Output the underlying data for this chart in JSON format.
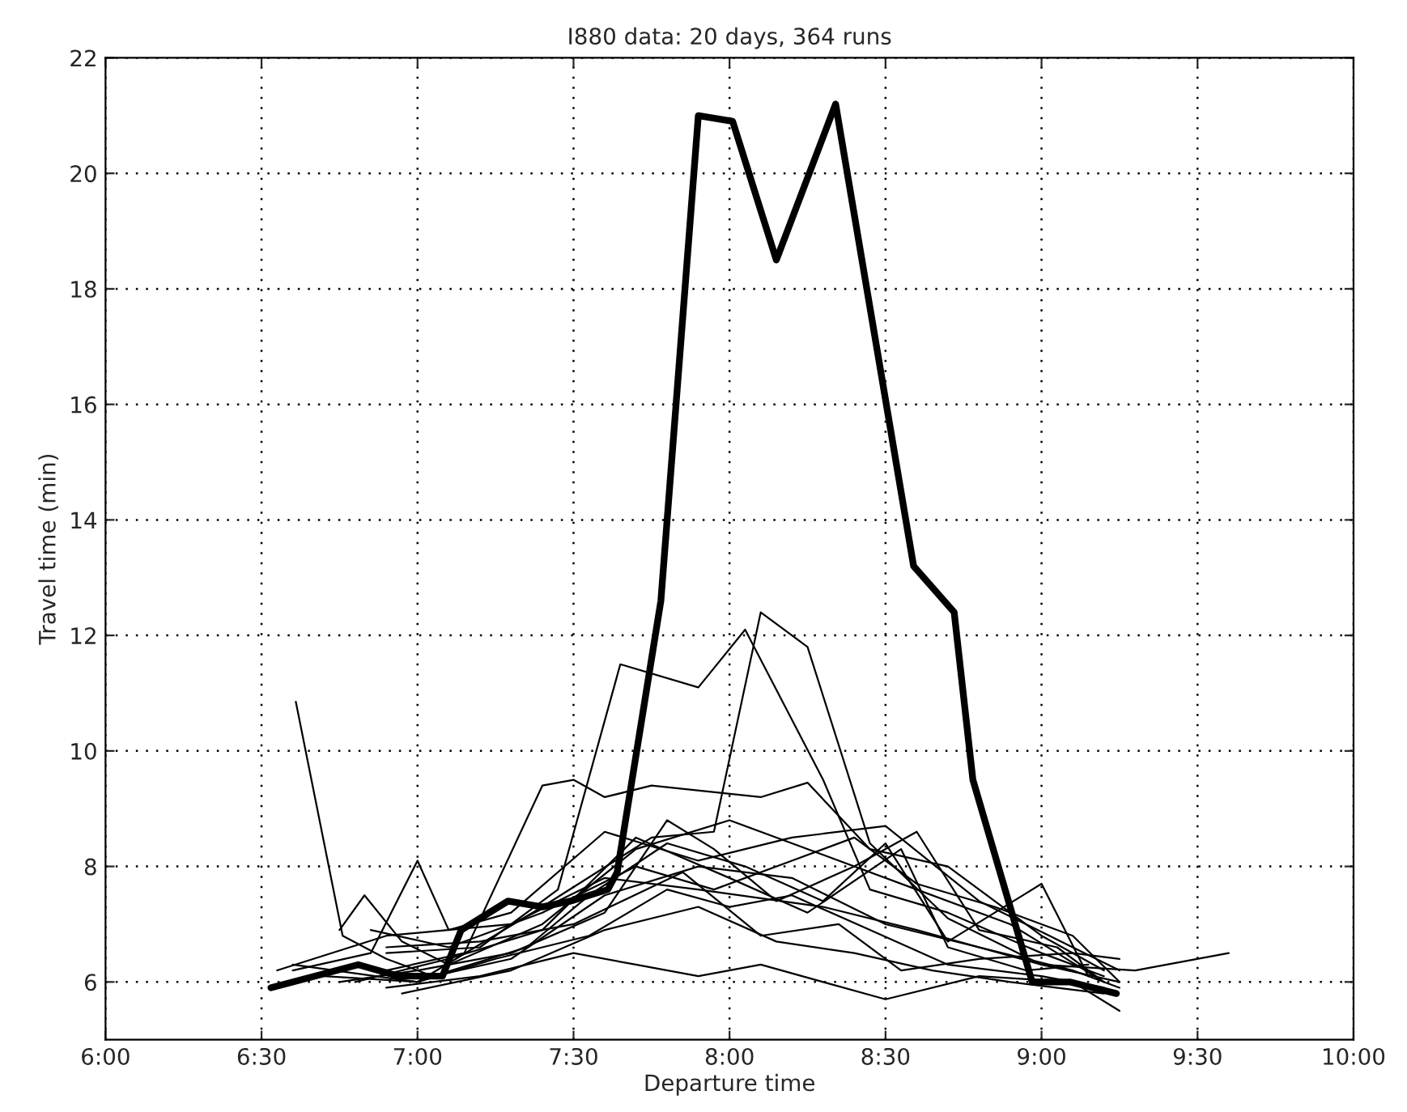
{
  "chart_data": {
    "type": "line",
    "title": "I880 data: 20 days, 364 runs",
    "xlabel": "Departure time",
    "ylabel": "Travel time (min)",
    "xlim": [
      6,
      10
    ],
    "ylim": [
      5,
      22
    ],
    "xticks": [
      {
        "value": 6,
        "label": "6:00"
      },
      {
        "value": 6.5,
        "label": "6:30"
      },
      {
        "value": 7,
        "label": "7:00"
      },
      {
        "value": 7.5,
        "label": "7:30"
      },
      {
        "value": 8,
        "label": "8:00"
      },
      {
        "value": 8.5,
        "label": "8:30"
      },
      {
        "value": 9,
        "label": "9:00"
      },
      {
        "value": 9.5,
        "label": "9:30"
      },
      {
        "value": 10,
        "label": "10:00"
      }
    ],
    "yticks": [
      6,
      8,
      10,
      12,
      14,
      16,
      18,
      20,
      22
    ],
    "grid": true,
    "line_style": "solid",
    "marker": "none",
    "series": [
      {
        "color": "#000000",
        "x": [
          6.53,
          6.81,
          6.94,
          7.08,
          7.14,
          7.29,
          7.4,
          7.49,
          7.61,
          7.64,
          7.78,
          7.9,
          8.01,
          8.15,
          8.34,
          8.59,
          8.72,
          8.78,
          8.97,
          9.09,
          9.24
        ],
        "values": [
          5.9,
          6.3,
          6.1,
          6.1,
          6.9,
          7.4,
          7.3,
          7.4,
          7.6,
          7.9,
          12.6,
          21.0,
          20.9,
          18.5,
          21.2,
          13.2,
          12.4,
          9.5,
          6.0,
          6.0,
          5.8
        ]
      },
      {
        "color": "#000000",
        "x": [
          6.61,
          6.76,
          6.9,
          7.05,
          7.3,
          7.6,
          7.9,
          8.2,
          8.5,
          8.8,
          9.1,
          9.25
        ],
        "values": [
          10.85,
          6.8,
          6.4,
          6.1,
          6.4,
          7.5,
          8.0,
          7.8,
          7.0,
          6.6,
          6.2,
          5.9
        ]
      },
      {
        "color": "#000000",
        "x": [
          6.6,
          7.0,
          7.4,
          7.75,
          7.95,
          8.1,
          8.25,
          8.45,
          8.7,
          9.0,
          9.25
        ],
        "values": [
          6.3,
          6.0,
          7.3,
          8.5,
          8.6,
          12.4,
          11.8,
          8.4,
          7.1,
          6.3,
          6.0
        ]
      },
      {
        "color": "#000000",
        "x": [
          6.9,
          7.2,
          7.45,
          7.65,
          7.9,
          8.05,
          8.3,
          8.45,
          8.7,
          9.0,
          9.2
        ],
        "values": [
          6.5,
          6.6,
          7.6,
          11.5,
          11.1,
          12.1,
          9.5,
          7.6,
          7.2,
          6.5,
          6.1
        ]
      },
      {
        "color": "#000000",
        "x": [
          6.9,
          7.15,
          7.4,
          7.5,
          7.6,
          7.75,
          8.1,
          8.25,
          8.45,
          8.7,
          9.0,
          9.2
        ],
        "values": [
          6.2,
          6.5,
          9.4,
          9.5,
          9.2,
          9.4,
          9.2,
          9.45,
          8.3,
          8.0,
          6.8,
          6.2
        ]
      },
      {
        "color": "#000000",
        "x": [
          6.6,
          6.85,
          7.0,
          7.1,
          7.3,
          7.6,
          7.9,
          8.2,
          8.5,
          8.8,
          9.1,
          9.25
        ],
        "values": [
          6.2,
          6.5,
          8.1,
          6.9,
          7.2,
          8.6,
          8.1,
          8.5,
          8.7,
          7.4,
          6.6,
          6.2
        ]
      },
      {
        "color": "#000000",
        "x": [
          6.75,
          6.83,
          6.95,
          7.1,
          7.4,
          7.7,
          8.0,
          8.3,
          8.6,
          8.9,
          9.2
        ],
        "values": [
          6.9,
          7.5,
          6.7,
          6.3,
          7.0,
          8.3,
          8.8,
          8.2,
          7.6,
          7.0,
          6.0
        ]
      },
      {
        "color": "#000000",
        "x": [
          6.55,
          6.9,
          7.3,
          7.6,
          7.9,
          8.3,
          8.6,
          9.0,
          9.3,
          9.6
        ],
        "values": [
          6.2,
          6.8,
          7.0,
          7.8,
          7.6,
          7.3,
          6.9,
          6.3,
          6.2,
          6.5
        ]
      },
      {
        "color": "#000000",
        "x": [
          6.9,
          7.2,
          7.5,
          7.7,
          7.9,
          8.1,
          8.3,
          8.5,
          8.8,
          9.1,
          9.25
        ],
        "values": [
          5.9,
          6.1,
          6.5,
          6.3,
          6.1,
          6.3,
          6.0,
          5.7,
          6.1,
          6.0,
          5.5
        ]
      },
      {
        "color": "#000000",
        "x": [
          6.75,
          7.0,
          7.3,
          7.6,
          7.8,
          7.95,
          8.15,
          8.4,
          8.6,
          8.8,
          9.05,
          9.2
        ],
        "values": [
          6.0,
          6.2,
          6.5,
          7.2,
          8.8,
          8.3,
          7.4,
          8.0,
          8.6,
          6.9,
          6.6,
          6.0
        ]
      },
      {
        "color": "#000000",
        "x": [
          6.8,
          7.1,
          7.4,
          7.7,
          8.0,
          8.25,
          8.55,
          8.7,
          8.95,
          9.15
        ],
        "values": [
          6.0,
          6.4,
          6.9,
          8.5,
          7.8,
          7.2,
          8.3,
          6.6,
          6.2,
          6.3
        ]
      },
      {
        "color": "#000000",
        "x": [
          6.85,
          7.05,
          7.35,
          7.55,
          7.8,
          8.05,
          8.3,
          8.5,
          8.7,
          9.0,
          9.15
        ],
        "values": [
          6.2,
          6.1,
          6.6,
          7.5,
          8.4,
          8.0,
          7.4,
          8.4,
          6.7,
          7.7,
          6.1
        ]
      },
      {
        "color": "#000000",
        "x": [
          6.9,
          7.2,
          7.5,
          7.85,
          8.1,
          8.35,
          8.55,
          8.8,
          9.1,
          9.25
        ],
        "values": [
          6.6,
          6.7,
          7.0,
          7.9,
          6.8,
          7.0,
          6.2,
          6.4,
          6.5,
          6.4
        ]
      },
      {
        "color": "#000000",
        "x": [
          6.7,
          7.0,
          7.25,
          7.55,
          7.8,
          8.0,
          8.2,
          8.45,
          8.7,
          9.0,
          9.2
        ],
        "values": [
          6.1,
          6.0,
          6.4,
          6.8,
          7.6,
          7.3,
          7.5,
          6.9,
          6.3,
          6.1,
          5.9
        ]
      },
      {
        "color": "#000000",
        "x": [
          6.95,
          7.3,
          7.6,
          7.9,
          8.15,
          8.4,
          8.65,
          8.9,
          9.2
        ],
        "values": [
          5.8,
          6.2,
          6.9,
          7.3,
          6.7,
          6.5,
          6.2,
          6.0,
          5.8
        ]
      },
      {
        "color": "#000000",
        "x": [
          6.85,
          7.1,
          7.4,
          7.7,
          7.95,
          8.2,
          8.4,
          8.6,
          8.85,
          9.1,
          9.25
        ],
        "values": [
          6.9,
          6.6,
          7.2,
          8.0,
          7.6,
          8.1,
          8.5,
          7.7,
          7.3,
          6.8,
          6.0
        ]
      }
    ]
  }
}
